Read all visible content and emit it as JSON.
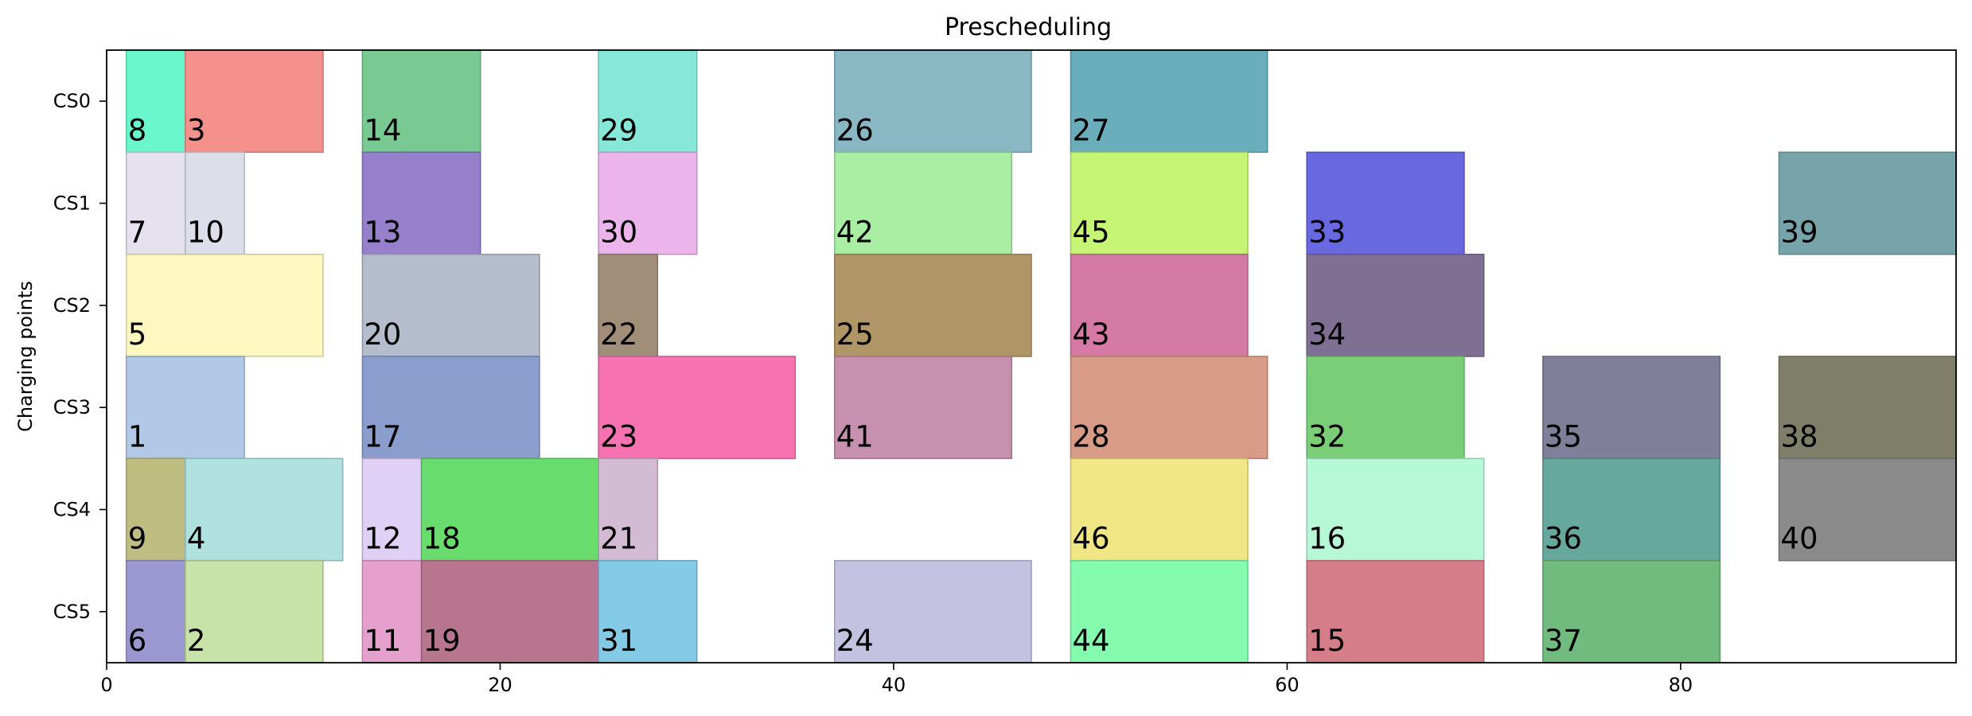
{
  "chart_data": {
    "type": "gantt",
    "title": "Prescheduling",
    "xlabel": "",
    "ylabel": "Charging points",
    "xlim": [
      0,
      94
    ],
    "xticks": [
      0,
      20,
      40,
      60,
      80
    ],
    "rows": [
      "CS0",
      "CS1",
      "CS2",
      "CS3",
      "CS4",
      "CS5"
    ],
    "grid": false,
    "tasks": [
      {
        "id": "8",
        "row": "CS0",
        "start": 1,
        "end": 4,
        "color": "#6bf7cc"
      },
      {
        "id": "3",
        "row": "CS0",
        "start": 4,
        "end": 11,
        "color": "#f5918d"
      },
      {
        "id": "14",
        "row": "CS0",
        "start": 13,
        "end": 19,
        "color": "#79c992"
      },
      {
        "id": "29",
        "row": "CS0",
        "start": 25,
        "end": 30,
        "color": "#87e8da"
      },
      {
        "id": "26",
        "row": "CS0",
        "start": 37,
        "end": 47,
        "color": "#89b8c4"
      },
      {
        "id": "27",
        "row": "CS0",
        "start": 49,
        "end": 59,
        "color": "#6aaebc"
      },
      {
        "id": "7",
        "row": "CS1",
        "start": 1,
        "end": 4,
        "color": "#e5e1ee"
      },
      {
        "id": "10",
        "row": "CS1",
        "start": 4,
        "end": 7,
        "color": "#dcdeea"
      },
      {
        "id": "13",
        "row": "CS1",
        "start": 13,
        "end": 19,
        "color": "#967fcb"
      },
      {
        "id": "30",
        "row": "CS1",
        "start": 25,
        "end": 30,
        "color": "#ebb5ec"
      },
      {
        "id": "42",
        "row": "CS1",
        "start": 37,
        "end": 46,
        "color": "#aaeea3"
      },
      {
        "id": "45",
        "row": "CS1",
        "start": 49,
        "end": 58,
        "color": "#c6f575"
      },
      {
        "id": "33",
        "row": "CS1",
        "start": 61,
        "end": 69,
        "color": "#6868e0"
      },
      {
        "id": "39",
        "row": "CS1",
        "start": 85,
        "end": 94,
        "color": "#76a4aa"
      },
      {
        "id": "5",
        "row": "CS2",
        "start": 1,
        "end": 11,
        "color": "#fef8c0"
      },
      {
        "id": "20",
        "row": "CS2",
        "start": 13,
        "end": 22,
        "color": "#b5bccb"
      },
      {
        "id": "22",
        "row": "CS2",
        "start": 25,
        "end": 28,
        "color": "#a08e79"
      },
      {
        "id": "25",
        "row": "CS2",
        "start": 37,
        "end": 47,
        "color": "#b09566"
      },
      {
        "id": "43",
        "row": "CS2",
        "start": 49,
        "end": 58,
        "color": "#d47aa5"
      },
      {
        "id": "34",
        "row": "CS2",
        "start": 61,
        "end": 70,
        "color": "#7f6f92"
      },
      {
        "id": "1",
        "row": "CS3",
        "start": 1,
        "end": 7,
        "color": "#b1c9e7"
      },
      {
        "id": "17",
        "row": "CS3",
        "start": 13,
        "end": 22,
        "color": "#8b9dcc"
      },
      {
        "id": "23",
        "row": "CS3",
        "start": 25,
        "end": 35,
        "color": "#f772b0"
      },
      {
        "id": "41",
        "row": "CS3",
        "start": 37,
        "end": 46,
        "color": "#c790ae"
      },
      {
        "id": "28",
        "row": "CS3",
        "start": 49,
        "end": 59,
        "color": "#d89b88"
      },
      {
        "id": "32",
        "row": "CS3",
        "start": 61,
        "end": 69,
        "color": "#7ace77"
      },
      {
        "id": "35",
        "row": "CS3",
        "start": 73,
        "end": 82,
        "color": "#7f7f9a"
      },
      {
        "id": "38",
        "row": "CS3",
        "start": 85,
        "end": 94,
        "color": "#7f7f69"
      },
      {
        "id": "9",
        "row": "CS4",
        "start": 1,
        "end": 4,
        "color": "#bfbd82"
      },
      {
        "id": "4",
        "row": "CS4",
        "start": 4,
        "end": 12,
        "color": "#afe1df"
      },
      {
        "id": "12",
        "row": "CS4",
        "start": 13,
        "end": 16,
        "color": "#dfd0f5"
      },
      {
        "id": "18",
        "row": "CS4",
        "start": 16,
        "end": 25,
        "color": "#68dc6d"
      },
      {
        "id": "21",
        "row": "CS4",
        "start": 25,
        "end": 28,
        "color": "#d3bcd3"
      },
      {
        "id": "46",
        "row": "CS4",
        "start": 49,
        "end": 58,
        "color": "#f1e686"
      },
      {
        "id": "16",
        "row": "CS4",
        "start": 61,
        "end": 70,
        "color": "#b7f9d7"
      },
      {
        "id": "36",
        "row": "CS4",
        "start": 73,
        "end": 82,
        "color": "#67a89c"
      },
      {
        "id": "40",
        "row": "CS4",
        "start": 85,
        "end": 94,
        "color": "#8a8a8a"
      },
      {
        "id": "6",
        "row": "CS5",
        "start": 1,
        "end": 4,
        "color": "#9b97d0"
      },
      {
        "id": "2",
        "row": "CS5",
        "start": 4,
        "end": 11,
        "color": "#c7e3a8"
      },
      {
        "id": "11",
        "row": "CS5",
        "start": 13,
        "end": 16,
        "color": "#e5a0cd"
      },
      {
        "id": "19",
        "row": "CS5",
        "start": 16,
        "end": 25,
        "color": "#b8758e"
      },
      {
        "id": "31",
        "row": "CS5",
        "start": 25,
        "end": 30,
        "color": "#83cae6"
      },
      {
        "id": "24",
        "row": "CS5",
        "start": 37,
        "end": 47,
        "color": "#c5c1e1"
      },
      {
        "id": "44",
        "row": "CS5",
        "start": 49,
        "end": 58,
        "color": "#84fbae"
      },
      {
        "id": "15",
        "row": "CS5",
        "start": 61,
        "end": 70,
        "color": "#d57d89"
      },
      {
        "id": "37",
        "row": "CS5",
        "start": 73,
        "end": 82,
        "color": "#72bb7f"
      }
    ]
  }
}
